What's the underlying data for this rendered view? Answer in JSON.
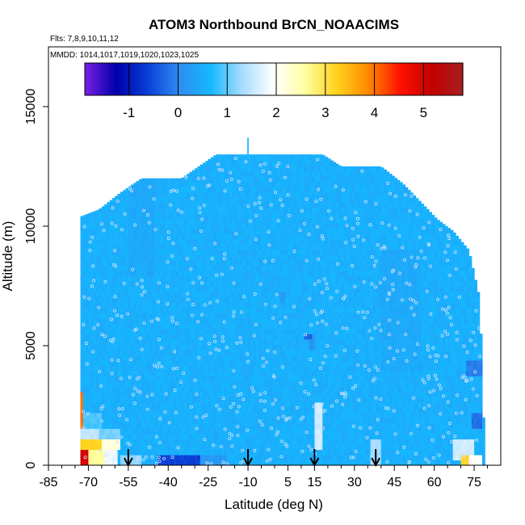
{
  "chart_data": {
    "type": "heatmap",
    "title": "ATOM3 Northbound BrCN_NOAACIMS",
    "flights_label": "Flts: 7,8,9,10,11,12",
    "dates_label": "MMDD: 1014,1017,1019,1020,1023,1025",
    "xlabel": "Latitude (deg N)",
    "ylabel": "Altitude (m)",
    "xlim": [
      -85,
      85
    ],
    "ylim": [
      0,
      17500
    ],
    "x_ticks": [
      -85,
      -70,
      -55,
      -40,
      -25,
      -10,
      5,
      15,
      30,
      45,
      60,
      75
    ],
    "x_minor_ticks": [
      -80,
      -75,
      -65,
      -60,
      -50,
      -45,
      -35,
      -30,
      -20,
      -15,
      -5,
      0,
      10,
      20,
      25,
      35,
      40,
      50,
      55,
      65,
      70,
      80
    ],
    "y_ticks": [
      0,
      5000,
      10000,
      15000
    ],
    "colorbar": {
      "min": -1.9,
      "max": 5.8,
      "ticks": [
        -1,
        0,
        1,
        2,
        3,
        4,
        5
      ],
      "colors": [
        "#7a1fe6",
        "#0000aa",
        "#0a3fd8",
        "#2f8df0",
        "#15b8ff",
        "#a9dcff",
        "#ffffff",
        "#ffffa0",
        "#ffd21c",
        "#ff8a00",
        "#ff1200",
        "#c40000",
        "#a52020"
      ]
    },
    "background_value": 0.55,
    "domain_ceiling": [
      {
        "lat": -73,
        "alt": 10400
      },
      {
        "lat": -66,
        "alt": 10700
      },
      {
        "lat": -58,
        "alt": 11400
      },
      {
        "lat": -50,
        "alt": 12000
      },
      {
        "lat": -35,
        "alt": 12000
      },
      {
        "lat": -22,
        "alt": 13000
      },
      {
        "lat": 18,
        "alt": 13000
      },
      {
        "lat": 25,
        "alt": 12500
      },
      {
        "lat": 40,
        "alt": 12500
      },
      {
        "lat": 48,
        "alt": 11800
      },
      {
        "lat": 55,
        "alt": 11000
      },
      {
        "lat": 61,
        "alt": 10300
      },
      {
        "lat": 67,
        "alt": 9800
      },
      {
        "lat": 73,
        "alt": 9000
      },
      {
        "lat": 77,
        "alt": 7000
      },
      {
        "lat": 78,
        "alt": 4000
      },
      {
        "lat": 79,
        "alt": 0
      }
    ],
    "domain_floor_start_lat": -73,
    "features": [
      {
        "lat": [
          -73,
          -70
        ],
        "alt": [
          0,
          600
        ],
        "value": 5.0
      },
      {
        "lat": [
          -70,
          -64
        ],
        "alt": [
          0,
          600
        ],
        "value": 2.6
      },
      {
        "lat": [
          -64,
          -59
        ],
        "alt": [
          0,
          600
        ],
        "value": 1.8
      },
      {
        "lat": [
          -73,
          -65
        ],
        "alt": [
          600,
          1000
        ],
        "value": 3.2
      },
      {
        "lat": [
          -65,
          -58
        ],
        "alt": [
          600,
          1000
        ],
        "value": 2.2
      },
      {
        "lat": [
          -73,
          -66
        ],
        "alt": [
          1000,
          1600
        ],
        "value": 1.5
      },
      {
        "lat": [
          -66,
          -58
        ],
        "alt": [
          1000,
          1600
        ],
        "value": 1.1
      },
      {
        "lat": [
          -73,
          -72
        ],
        "alt": [
          1600,
          3000
        ],
        "value": 4.0
      },
      {
        "lat": [
          -72,
          -65
        ],
        "alt": [
          1600,
          2300
        ],
        "value": 0.9
      },
      {
        "lat": [
          -44,
          -28
        ],
        "alt": [
          0,
          400
        ],
        "value": -0.6
      },
      {
        "lat": [
          -28,
          -18
        ],
        "alt": [
          0,
          400
        ],
        "value": 0.2
      },
      {
        "lat": [
          -58,
          -50
        ],
        "alt": [
          0,
          400
        ],
        "value": 1.2
      },
      {
        "lat": [
          15,
          18
        ],
        "alt": [
          600,
          2600
        ],
        "value": 1.6
      },
      {
        "lat": [
          36,
          40
        ],
        "alt": [
          0,
          1200
        ],
        "value": 1.3
      },
      {
        "lat": [
          67,
          75
        ],
        "alt": [
          300,
          1000
        ],
        "value": 1.6
      },
      {
        "lat": [
          70,
          73
        ],
        "alt": [
          0,
          400
        ],
        "value": 3.2
      },
      {
        "lat": [
          73,
          78
        ],
        "alt": [
          0,
          400
        ],
        "value": 2.0
      },
      {
        "lat": [
          74,
          78
        ],
        "alt": [
          1600,
          2200
        ],
        "value": -0.2
      },
      {
        "lat": [
          72,
          78
        ],
        "alt": [
          3800,
          4300
        ],
        "value": -0.1
      },
      {
        "lat": [
          13,
          15
        ],
        "alt": [
          4800,
          5500
        ],
        "value": 0.1
      },
      {
        "lat": [
          11,
          14
        ],
        "alt": [
          5200,
          5600
        ],
        "value": -0.3
      },
      {
        "lat": [
          2,
          4
        ],
        "alt": [
          6900,
          7300
        ],
        "value": 0.2
      },
      {
        "lat": [
          -55,
          -45
        ],
        "alt": [
          8000,
          12000
        ],
        "value": 0.45
      },
      {
        "lat": [
          40,
          55
        ],
        "alt": [
          4000,
          9000
        ],
        "value": 0.45
      }
    ],
    "arrow_latitudes": [
      -55,
      -10,
      15,
      38
    ],
    "spike": {
      "lat": -10,
      "alt_from": 12900,
      "alt_to": 13700
    }
  }
}
